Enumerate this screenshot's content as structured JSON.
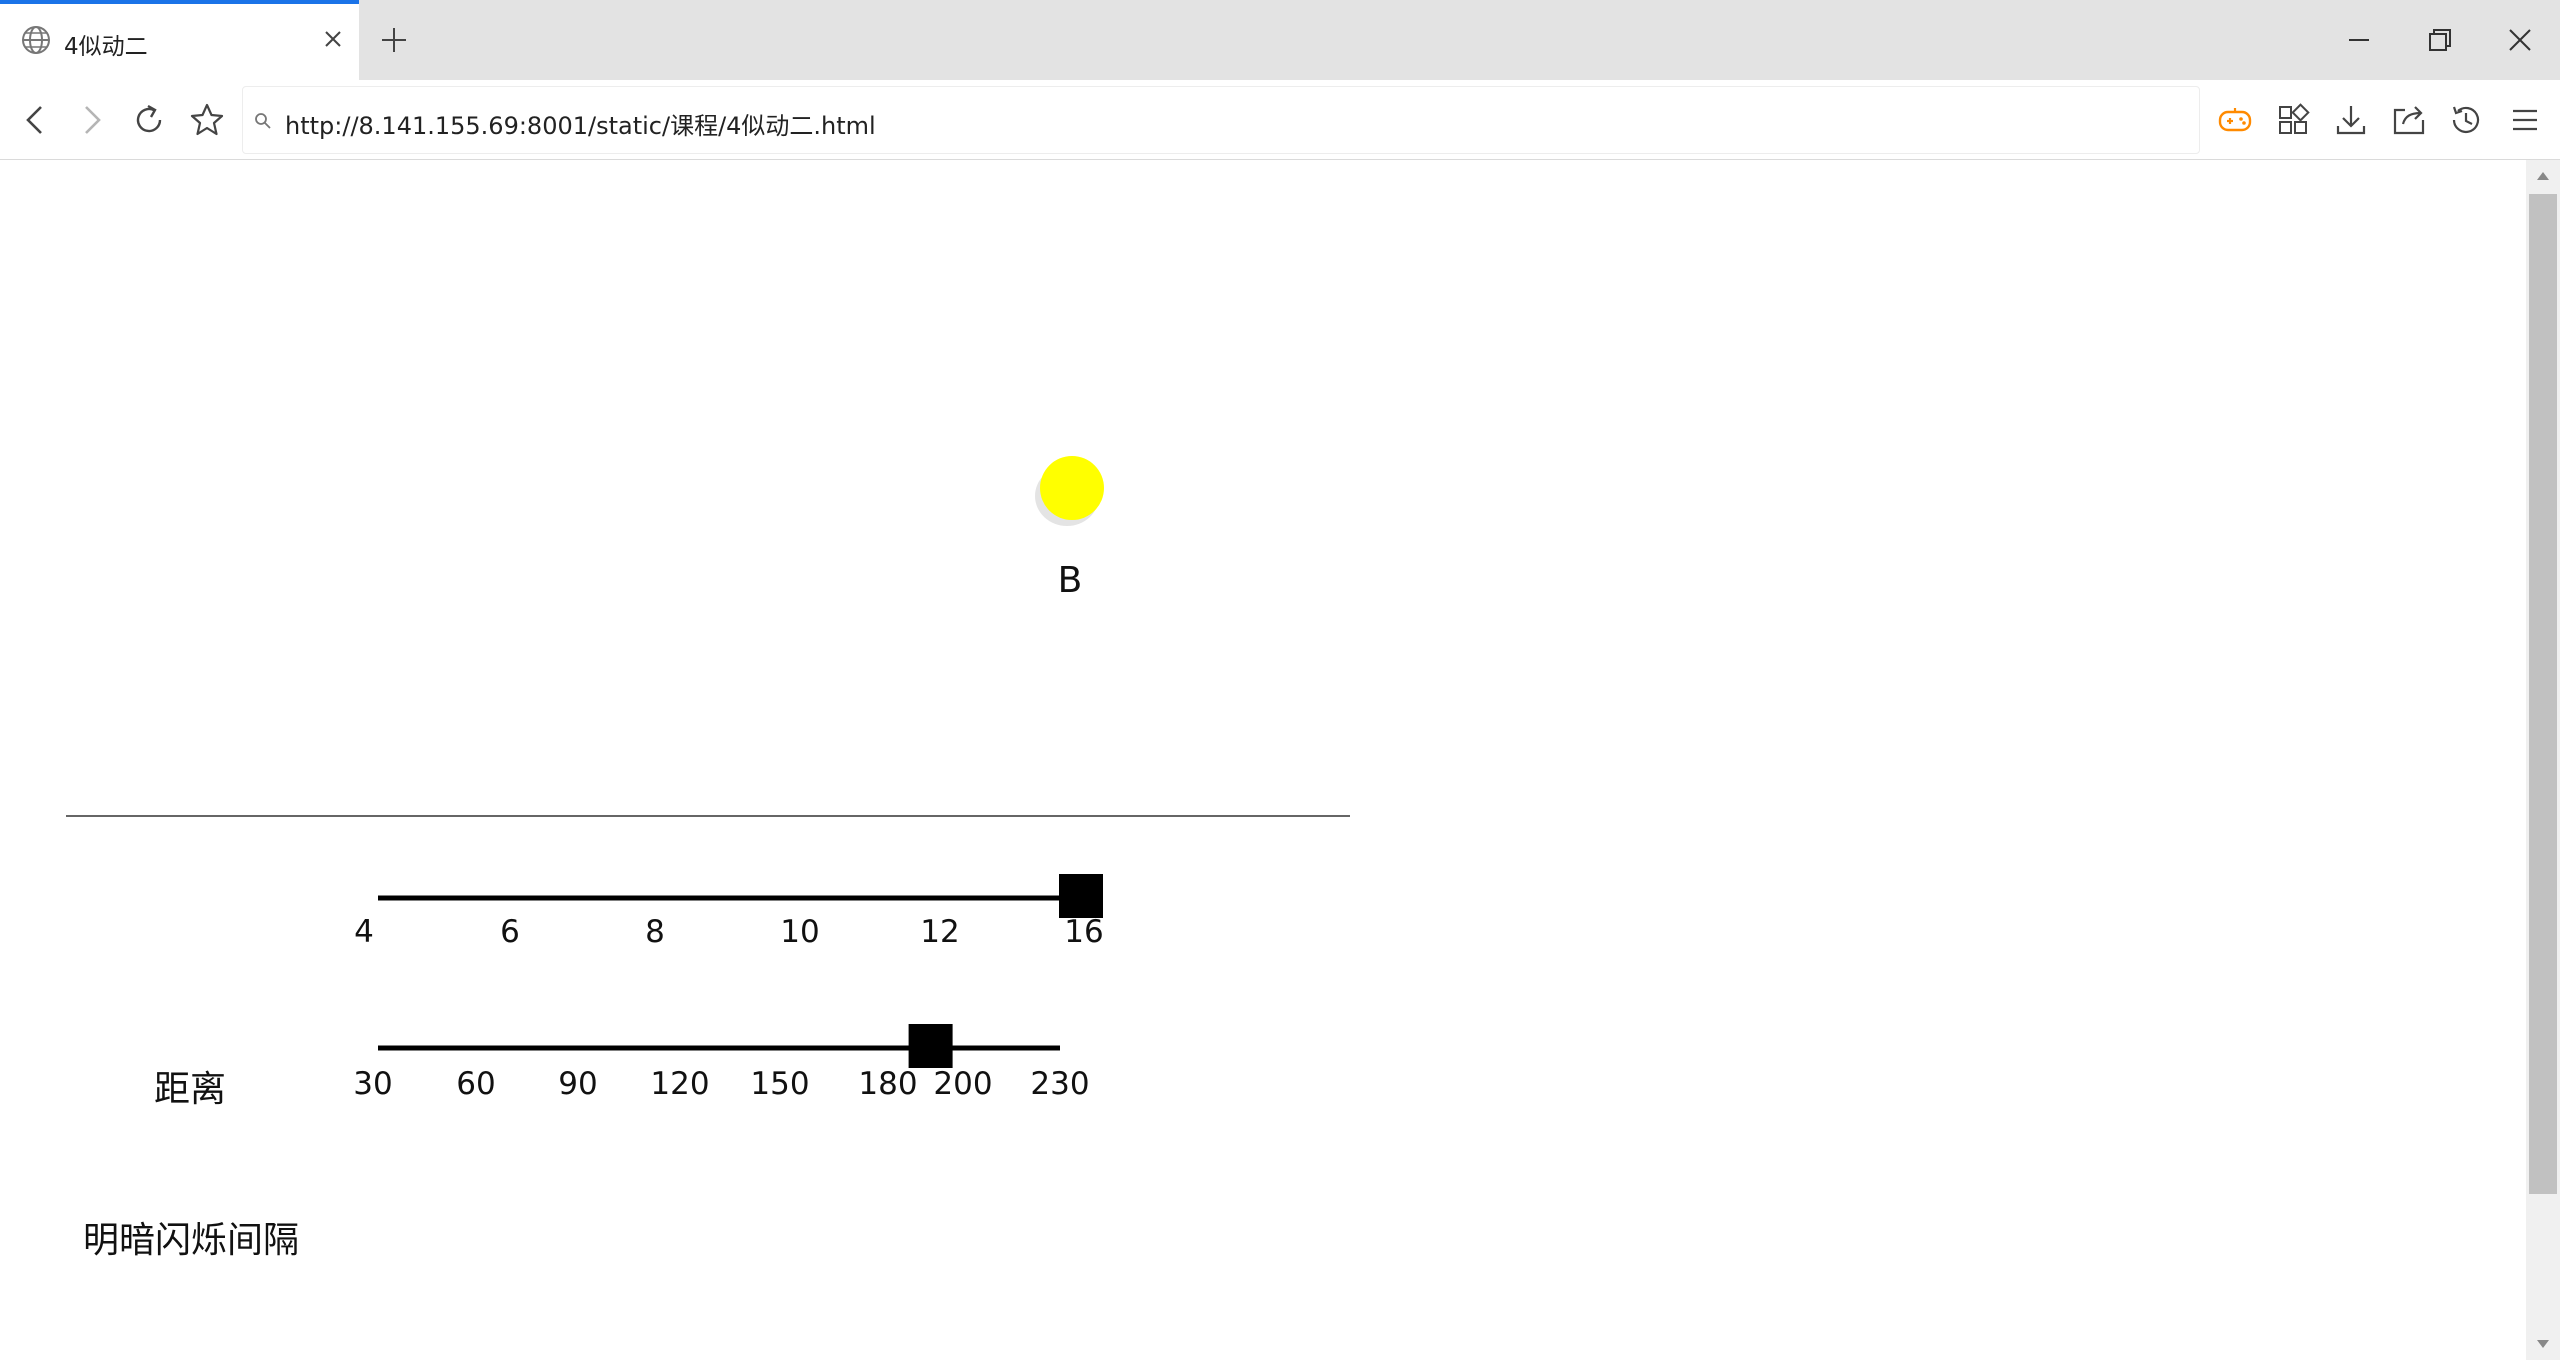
{
  "browser": {
    "tab": {
      "title": "4似动二",
      "icon": "globe-icon"
    },
    "address": {
      "url": "http://8.141.155.69:8001/static/课程/4似动二.html"
    },
    "colors": {
      "tab_accent": "#1a73e8",
      "game_icon": "#ff8a00"
    }
  },
  "page": {
    "light": {
      "label": "B",
      "color": "#ffff00"
    },
    "sliders": [
      {
        "label": "距离",
        "min": 4,
        "max": 16,
        "value": 16,
        "ticks": [
          "4",
          "6",
          "8",
          "10",
          "12",
          "16"
        ]
      },
      {
        "label": "明暗闪烁间隔",
        "min": 30,
        "max": 230,
        "value": 190,
        "ticks": [
          "30",
          "60",
          "90",
          "120",
          "150",
          "180",
          "200",
          "230"
        ]
      }
    ]
  }
}
